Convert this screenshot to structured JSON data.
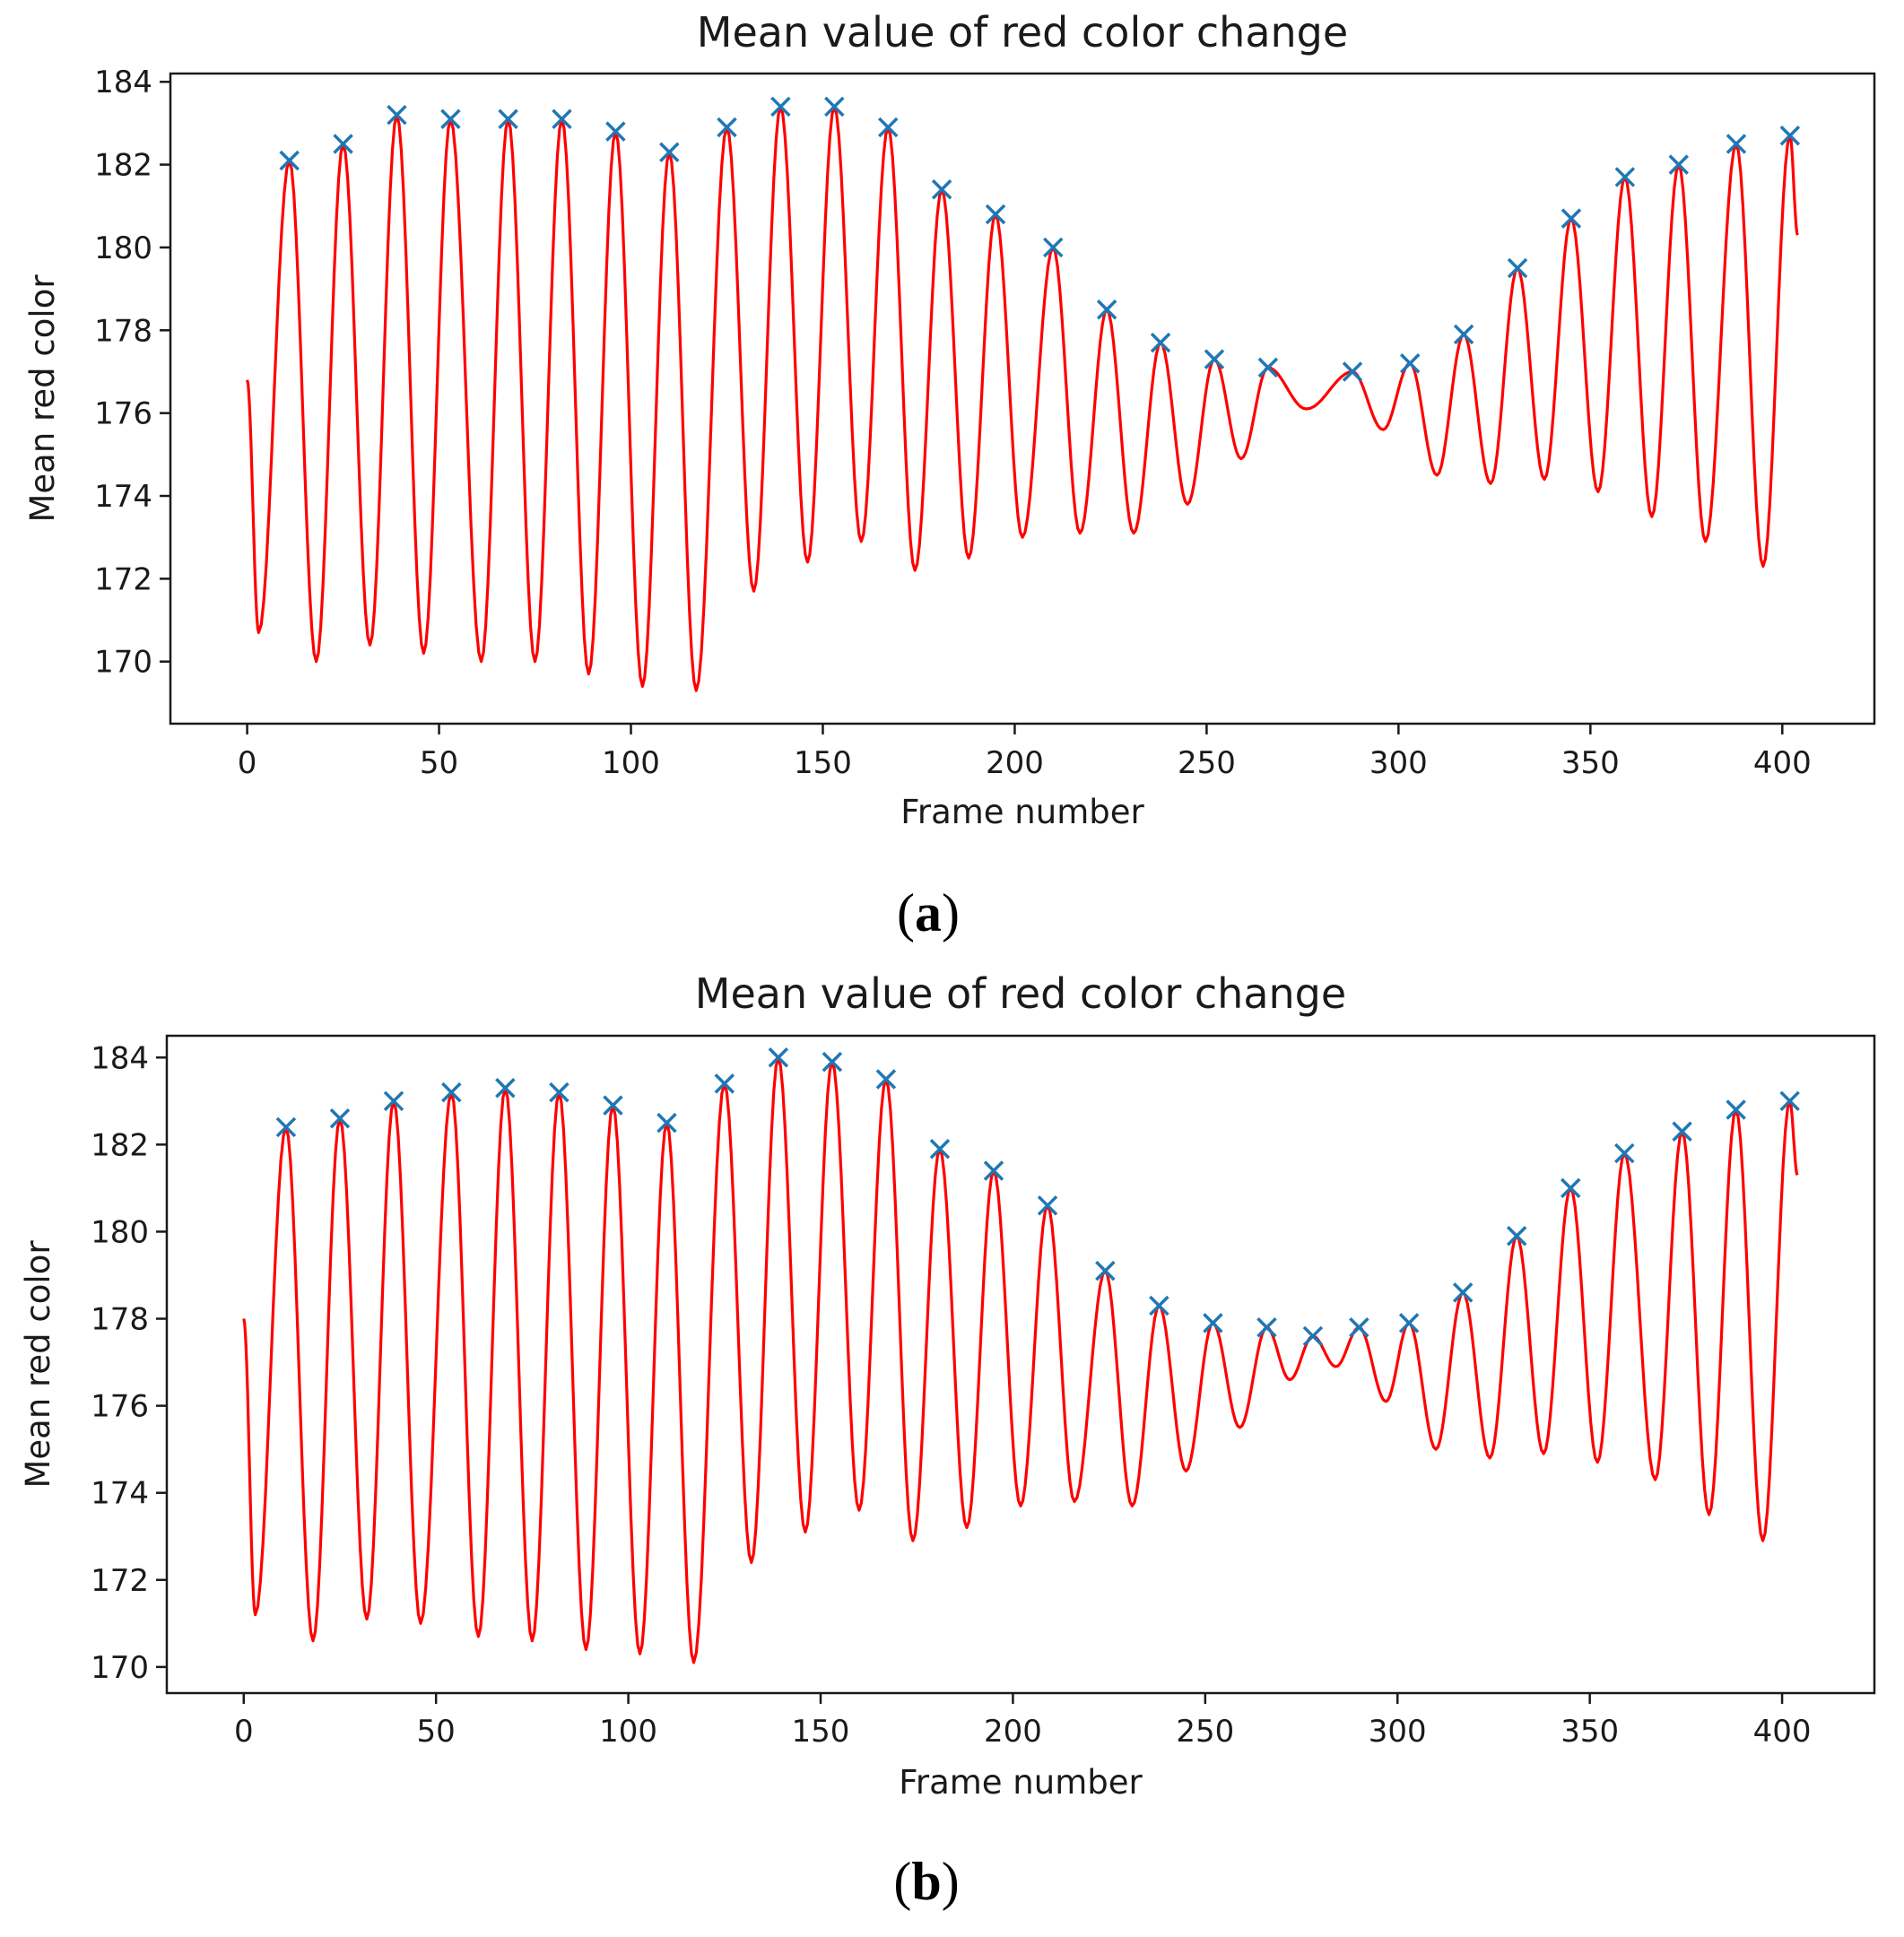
{
  "colors": {
    "line": "#ff0000",
    "marker": "#1f77b4",
    "frame": "#1a1a1a"
  },
  "chart_data": [
    {
      "type": "line",
      "title": "Mean value of red color change",
      "xlabel": "Frame number",
      "ylabel": "Mean red color",
      "caption_letter": "a",
      "xlim": [
        -20,
        424
      ],
      "ylim": [
        168.5,
        184.2
      ],
      "xticks": [
        0,
        50,
        100,
        150,
        200,
        250,
        300,
        350,
        400
      ],
      "yticks": [
        170,
        172,
        174,
        176,
        178,
        180,
        182,
        184
      ],
      "start": [
        0,
        176.8
      ],
      "end": [
        404,
        180.3
      ],
      "peaks": [
        [
          11,
          182.1
        ],
        [
          25,
          182.5
        ],
        [
          39,
          183.2
        ],
        [
          53,
          183.1
        ],
        [
          68,
          183.1
        ],
        [
          82,
          183.1
        ],
        [
          96,
          182.8
        ],
        [
          110,
          182.3
        ],
        [
          125,
          182.9
        ],
        [
          139,
          183.4
        ],
        [
          153,
          183.4
        ],
        [
          167,
          182.9
        ],
        [
          181,
          181.4
        ],
        [
          195,
          180.8
        ],
        [
          210,
          180.0
        ],
        [
          224,
          178.5
        ],
        [
          238,
          177.7
        ],
        [
          252,
          177.3
        ],
        [
          266,
          177.1
        ],
        [
          288,
          177.0
        ],
        [
          303,
          177.2
        ],
        [
          317,
          177.9
        ],
        [
          331,
          179.5
        ],
        [
          345,
          180.7
        ],
        [
          359,
          181.7
        ],
        [
          373,
          182.0
        ],
        [
          388,
          182.5
        ],
        [
          402,
          182.7
        ]
      ],
      "troughs": [
        [
          3,
          170.7
        ],
        [
          18,
          170.0
        ],
        [
          32,
          170.4
        ],
        [
          46,
          170.2
        ],
        [
          61,
          170.0
        ],
        [
          75,
          170.0
        ],
        [
          89,
          169.7
        ],
        [
          103,
          169.4
        ],
        [
          117,
          169.3
        ],
        [
          132,
          171.7
        ],
        [
          146,
          172.4
        ],
        [
          160,
          172.9
        ],
        [
          174,
          172.2
        ],
        [
          188,
          172.5
        ],
        [
          202,
          173.0
        ],
        [
          217,
          173.1
        ],
        [
          231,
          173.1
        ],
        [
          245,
          173.8
        ],
        [
          259,
          174.9
        ],
        [
          276,
          176.1
        ],
        [
          296,
          175.6
        ],
        [
          310,
          174.5
        ],
        [
          324,
          174.3
        ],
        [
          338,
          174.4
        ],
        [
          352,
          174.1
        ],
        [
          366,
          173.5
        ],
        [
          380,
          172.9
        ],
        [
          395,
          172.3
        ]
      ]
    },
    {
      "type": "line",
      "title": "Mean value of red color change",
      "xlabel": "Frame number",
      "ylabel": "Mean red color",
      "caption_letter": "b",
      "xlim": [
        -20,
        424
      ],
      "ylim": [
        169.4,
        184.5
      ],
      "xticks": [
        0,
        50,
        100,
        150,
        200,
        250,
        300,
        350,
        400
      ],
      "yticks": [
        170,
        172,
        174,
        176,
        178,
        180,
        182,
        184
      ],
      "start": [
        0,
        178.0
      ],
      "end": [
        404,
        181.3
      ],
      "peaks": [
        [
          11,
          182.4
        ],
        [
          25,
          182.6
        ],
        [
          39,
          183.0
        ],
        [
          54,
          183.2
        ],
        [
          68,
          183.3
        ],
        [
          82,
          183.2
        ],
        [
          96,
          182.9
        ],
        [
          110,
          182.5
        ],
        [
          125,
          183.4
        ],
        [
          139,
          184.0
        ],
        [
          153,
          183.9
        ],
        [
          167,
          183.5
        ],
        [
          181,
          181.9
        ],
        [
          195,
          181.4
        ],
        [
          209,
          180.6
        ],
        [
          224,
          179.1
        ],
        [
          238,
          178.3
        ],
        [
          252,
          177.9
        ],
        [
          266,
          177.8
        ],
        [
          278,
          177.6
        ],
        [
          290,
          177.8
        ],
        [
          303,
          177.9
        ],
        [
          317,
          178.6
        ],
        [
          331,
          179.9
        ],
        [
          345,
          181.0
        ],
        [
          359,
          181.8
        ],
        [
          374,
          182.3
        ],
        [
          388,
          182.8
        ],
        [
          402,
          183.0
        ]
      ],
      "troughs": [
        [
          3,
          171.2
        ],
        [
          18,
          170.6
        ],
        [
          32,
          171.1
        ],
        [
          46,
          171.0
        ],
        [
          61,
          170.7
        ],
        [
          75,
          170.6
        ],
        [
          89,
          170.4
        ],
        [
          103,
          170.3
        ],
        [
          117,
          170.1
        ],
        [
          132,
          172.4
        ],
        [
          146,
          173.1
        ],
        [
          160,
          173.6
        ],
        [
          174,
          172.9
        ],
        [
          188,
          173.2
        ],
        [
          202,
          173.7
        ],
        [
          216,
          173.8
        ],
        [
          231,
          173.7
        ],
        [
          245,
          174.5
        ],
        [
          259,
          175.5
        ],
        [
          272,
          176.6
        ],
        [
          284,
          176.9
        ],
        [
          297,
          176.1
        ],
        [
          310,
          175.0
        ],
        [
          324,
          174.8
        ],
        [
          338,
          174.9
        ],
        [
          352,
          174.7
        ],
        [
          367,
          174.3
        ],
        [
          381,
          173.5
        ],
        [
          395,
          172.9
        ]
      ]
    }
  ]
}
